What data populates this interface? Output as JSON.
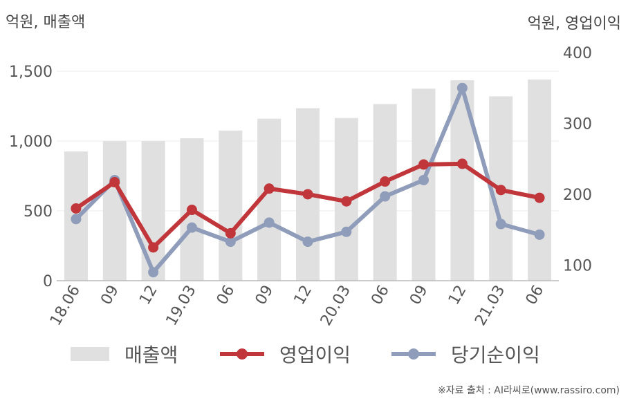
{
  "units": {
    "left": "억원, 매출액",
    "right": "억원, 영업이익"
  },
  "source": "※자료 출처 : AI라씨로(www.rassiro.com)",
  "colors": {
    "bar": "#e0e0e0",
    "operating": "#c0363a",
    "net": "#8f9dba",
    "axis": "#bbbbbb",
    "grid": "#eeeeee",
    "text": "#555555"
  },
  "chart_data": {
    "type": "bar+line",
    "categories": [
      "18.06",
      "09",
      "12",
      "19.03",
      "06",
      "09",
      "12",
      "20.03",
      "06",
      "09",
      "12",
      "21.03",
      "06"
    ],
    "y_left": {
      "label": "억원, 매출액",
      "ylim": [
        0,
        1500
      ],
      "ticks": [
        0,
        500,
        1000,
        1500
      ],
      "tick_labels": [
        "0",
        "500",
        "1,000",
        "1,500"
      ]
    },
    "y_right": {
      "label": "억원, 영업이익",
      "ylim": [
        78,
        400
      ],
      "ticks": [
        100,
        200,
        300,
        400
      ],
      "tick_labels": [
        "100",
        "200",
        "300",
        "400"
      ]
    },
    "grid": true,
    "legend_position": "bottom",
    "series": [
      {
        "name": "매출액",
        "type": "bar",
        "axis": "left",
        "values": [
          925,
          1000,
          1000,
          1020,
          1075,
          1160,
          1235,
          1165,
          1265,
          1375,
          1435,
          1320,
          1440
        ]
      },
      {
        "name": "영업이익",
        "type": "line",
        "axis": "right",
        "values": [
          180,
          217,
          125,
          178,
          145,
          208,
          200,
          190,
          218,
          242,
          243,
          206,
          195
        ]
      },
      {
        "name": "당기순이익",
        "type": "line",
        "axis": "right",
        "values": [
          165,
          220,
          90,
          153,
          133,
          160,
          133,
          147,
          197,
          220,
          350,
          158,
          143
        ]
      }
    ]
  }
}
